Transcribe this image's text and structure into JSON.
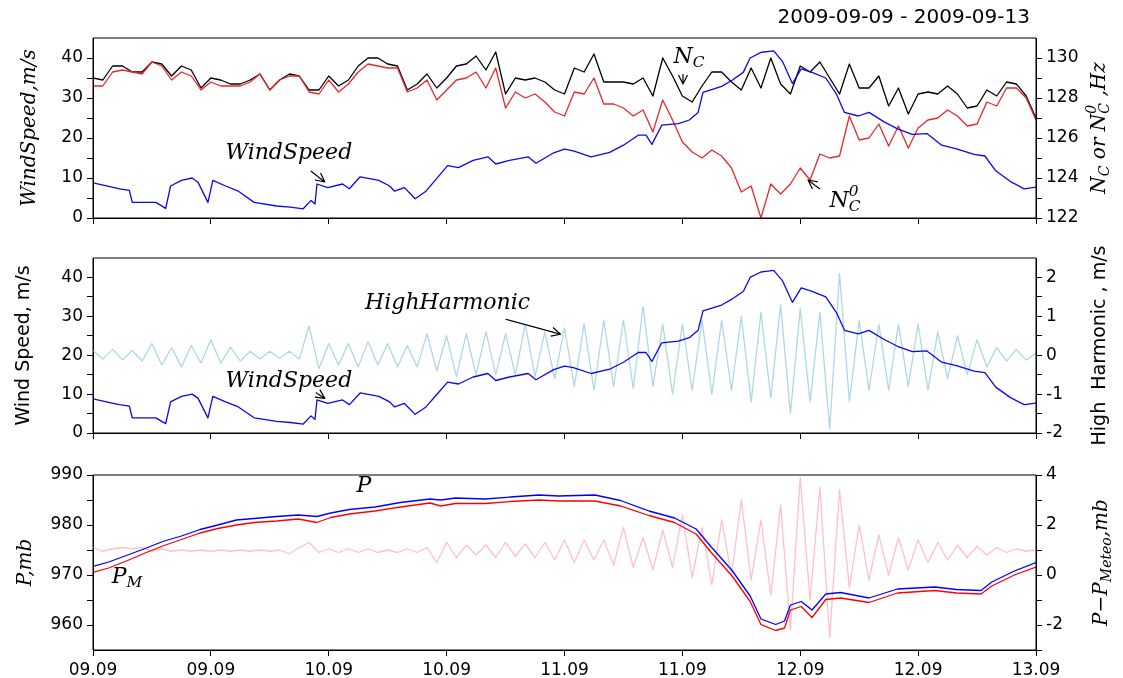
{
  "chart_data": [
    {
      "type": "line",
      "title": "2009-09-09 - 2009-09-13",
      "ylabel": "WindSpeed,m/s",
      "y2label": "N$_{C}$ or N$_{C}$$^{0}$ ,Hz",
      "tick_labels": "y",
      "x": [
        "2009-09-09T00:00",
        "2009-09-09T01:00",
        "2009-09-09T02:00",
        "2009-09-09T03:00",
        "2009-09-09T04:00",
        "2009-09-09T05:00",
        "2009-09-09T06:00",
        "2009-09-09T07:00",
        "2009-09-09T08:00",
        "2009-09-09T09:00",
        "2009-09-09T10:00",
        "2009-09-09T11:00",
        "2009-09-09T12:00",
        "2009-09-09T13:00",
        "2009-09-09T14:00",
        "2009-09-09T15:00",
        "2009-09-09T16:00",
        "2009-09-09T17:00",
        "2009-09-09T18:00",
        "2009-09-09T19:00",
        "2009-09-09T20:00",
        "2009-09-09T21:00",
        "2009-09-09T22:00",
        "2009-09-09T23:00",
        "2009-09-10T00:00",
        "2009-09-10T01:00",
        "2009-09-10T02:00",
        "2009-09-10T03:00",
        "2009-09-10T04:00",
        "2009-09-10T05:00",
        "2009-09-10T06:00",
        "2009-09-10T07:00",
        "2009-09-10T08:00",
        "2009-09-10T09:00",
        "2009-09-10T10:00",
        "2009-09-10T11:00",
        "2009-09-10T12:00",
        "2009-09-10T13:00",
        "2009-09-10T14:00",
        "2009-09-10T15:00",
        "2009-09-10T16:00",
        "2009-09-10T17:00",
        "2009-09-10T18:00",
        "2009-09-10T19:00",
        "2009-09-10T20:00",
        "2009-09-10T21:00",
        "2009-09-10T22:00",
        "2009-09-10T23:00",
        "2009-09-11T00:00",
        "2009-09-11T01:00",
        "2009-09-11T02:00",
        "2009-09-11T03:00",
        "2009-09-11T04:00",
        "2009-09-11T05:00",
        "2009-09-11T06:00",
        "2009-09-11T07:00",
        "2009-09-11T08:00",
        "2009-09-11T09:00",
        "2009-09-11T10:00",
        "2009-09-11T11:00",
        "2009-09-11T12:00",
        "2009-09-11T13:00",
        "2009-09-11T14:00",
        "2009-09-11T15:00",
        "2009-09-11T16:00",
        "2009-09-11T17:00",
        "2009-09-11T18:00",
        "2009-09-11T19:00",
        "2009-09-11T20:00",
        "2009-09-11T21:00",
        "2009-09-11T22:00",
        "2009-09-11T23:00",
        "2009-09-12T00:00",
        "2009-09-12T01:00",
        "2009-09-12T02:00",
        "2009-09-12T03:00",
        "2009-09-12T04:00",
        "2009-09-12T05:00",
        "2009-09-12T06:00",
        "2009-09-12T07:00",
        "2009-09-12T08:00",
        "2009-09-12T09:00",
        "2009-09-12T10:00",
        "2009-09-12T11:00",
        "2009-09-12T12:00",
        "2009-09-12T13:00",
        "2009-09-12T14:00",
        "2009-09-12T15:00",
        "2009-09-12T16:00",
        "2009-09-12T17:00",
        "2009-09-12T18:00",
        "2009-09-12T19:00",
        "2009-09-12T20:00",
        "2009-09-12T21:00",
        "2009-09-12T22:00",
        "2009-09-12T23:00",
        "2009-09-13T00:00"
      ],
      "xlim": [
        "2009-09-09T00:00",
        "2009-09-13T00:00"
      ],
      "xticks": [
        {
          "value": "2009-09-09T00:00",
          "label": null
        },
        {
          "value": "2009-09-09T12:00",
          "label": null
        },
        {
          "value": "2009-09-10T00:00",
          "label": null
        },
        {
          "value": "2009-09-10T12:00",
          "label": null
        },
        {
          "value": "2009-09-11T00:00",
          "label": null
        },
        {
          "value": "2009-09-11T12:00",
          "label": null
        },
        {
          "value": "2009-09-12T00:00",
          "label": null
        },
        {
          "value": "2009-09-12T12:00",
          "label": null
        },
        {
          "value": "2009-09-13T00:00",
          "label": null
        }
      ],
      "ylim": [
        0,
        45
      ],
      "yticks": [
        0,
        {
          "value": 5,
          "label": null
        },
        10,
        {
          "value": 15,
          "label": null
        },
        20,
        {
          "value": 25,
          "label": null
        },
        30,
        {
          "value": 35,
          "label": null
        },
        40
      ],
      "y2lim": [
        122,
        131
      ],
      "y2ticks": [
        122,
        {
          "value": 123,
          "label": null
        },
        124,
        {
          "value": 125,
          "label": null
        },
        126,
        {
          "value": 127,
          "label": null
        },
        128,
        {
          "value": 129,
          "label": null
        },
        130
      ],
      "series": [
        {
          "type": "line",
          "axis": "y2",
          "color": "#000000",
          "values": [
            129.0,
            128.9,
            129.6,
            129.6,
            129.3,
            129.3,
            129.8,
            129.7,
            129.1,
            129.6,
            129.4,
            128.5,
            129.0,
            128.9,
            128.7,
            128.7,
            128.9,
            129.2,
            128.4,
            128.9,
            129.2,
            129.1,
            128.4,
            128.4,
            129.1,
            128.6,
            128.9,
            129.6,
            130.0,
            130.0,
            129.7,
            129.6,
            128.4,
            128.7,
            129.2,
            128.5,
            129.0,
            129.6,
            129.7,
            130.1,
            129.4,
            130.3,
            128.2,
            129.0,
            128.9,
            129.0,
            128.8,
            128.4,
            128.2,
            129.5,
            129.3,
            130.2,
            128.8,
            128.8,
            128.8,
            128.7,
            129.0,
            128.1,
            130.0,
            129.1,
            128.1,
            127.8,
            128.6,
            129.3,
            129.3,
            128.8,
            128.4,
            129.5,
            128.5,
            130.0,
            128.7,
            128.2,
            129.6,
            129.3,
            129.8,
            129.0,
            128.2,
            129.7,
            128.5,
            128.5,
            129.1,
            127.6,
            128.5,
            127.2,
            128.2,
            128.3,
            128.2,
            128.6,
            128.2,
            127.5,
            127.6,
            128.4,
            128.1,
            128.8,
            128.7,
            128.1,
            127.0
          ]
        },
        {
          "type": "line",
          "axis": "y2",
          "color": "#e8282a",
          "values": [
            128.6,
            128.6,
            129.3,
            129.4,
            129.3,
            129.2,
            129.8,
            129.6,
            128.9,
            129.3,
            129.1,
            128.4,
            128.8,
            128.6,
            128.6,
            128.6,
            128.8,
            129.2,
            128.4,
            128.9,
            129.1,
            129.1,
            128.3,
            128.2,
            128.9,
            128.3,
            128.7,
            129.3,
            129.7,
            129.6,
            129.5,
            129.5,
            128.3,
            128.5,
            128.9,
            127.9,
            128.4,
            128.9,
            129.0,
            129.3,
            128.5,
            129.5,
            127.5,
            128.3,
            128.0,
            128.2,
            127.8,
            127.3,
            127.1,
            128.3,
            128.2,
            129.0,
            127.7,
            127.7,
            127.5,
            127.1,
            127.4,
            126.3,
            127.9,
            126.9,
            125.8,
            125.3,
            125.0,
            125.4,
            125.1,
            124.5,
            123.3,
            123.6,
            122.0,
            123.7,
            123.2,
            123.7,
            124.5,
            123.9,
            125.2,
            125.0,
            125.1,
            127.1,
            125.9,
            126.0,
            126.7,
            125.6,
            126.6,
            125.5,
            126.5,
            126.9,
            127.0,
            127.4,
            127.1,
            126.6,
            126.7,
            127.8,
            127.6,
            128.5,
            128.5,
            128.0,
            126.9
          ]
        },
        {
          "type": "line",
          "color": "#0a0ae6",
          "x": [
            "2009-09-09T00:00",
            "2009-09-09T01:36",
            "2009-09-09T02:42",
            "2009-09-09T03:42",
            "2009-09-09T04:00",
            "2009-09-09T05:18",
            "2009-09-09T06:24",
            "2009-09-09T07:24",
            "2009-09-09T07:54",
            "2009-09-09T09:00",
            "2009-09-09T10:06",
            "2009-09-09T10:42",
            "2009-09-09T11:42",
            "2009-09-09T12:12",
            "2009-09-09T13:30",
            "2009-09-09T14:48",
            "2009-09-09T16:24",
            "2009-09-09T18:42",
            "2009-09-09T20:06",
            "2009-09-09T21:24",
            "2009-09-09T22:12",
            "2009-09-09T22:36",
            "2009-09-09T22:48",
            "2009-09-09T23:54",
            "2009-09-10T01:24",
            "2009-09-10T02:06",
            "2009-09-10T03:12",
            "2009-09-10T05:06",
            "2009-09-10T06:12",
            "2009-09-10T06:42",
            "2009-09-10T07:42",
            "2009-09-10T08:48",
            "2009-09-10T09:54",
            "2009-09-10T11:00",
            "2009-09-10T12:06",
            "2009-09-10T13:12",
            "2009-09-10T14:42",
            "2009-09-10T16:12",
            "2009-09-10T17:00",
            "2009-09-10T18:24",
            "2009-09-10T20:18",
            "2009-09-10T21:06",
            "2009-09-10T22:54",
            "2009-09-11T00:00",
            "2009-09-11T00:54",
            "2009-09-11T02:42",
            "2009-09-11T04:36",
            "2009-09-11T06:00",
            "2009-09-11T07:30",
            "2009-09-11T08:18",
            "2009-09-11T08:54",
            "2009-09-11T09:54",
            "2009-09-11T11:36",
            "2009-09-11T12:42",
            "2009-09-11T13:36",
            "2009-09-11T14:06",
            "2009-09-11T16:00",
            "2009-09-11T17:06",
            "2009-09-11T18:12",
            "2009-09-11T18:54",
            "2009-09-11T20:00",
            "2009-09-11T21:18",
            "2009-09-11T22:12",
            "2009-09-11T23:12",
            "2009-09-12T00:06",
            "2009-09-12T01:12",
            "2009-09-12T02:36",
            "2009-09-12T03:42",
            "2009-09-12T04:30",
            "2009-09-12T05:54",
            "2009-09-12T07:00",
            "2009-09-12T08:30",
            "2009-09-12T09:54",
            "2009-09-12T11:24",
            "2009-09-12T12:54",
            "2009-09-12T14:24",
            "2009-09-12T15:54",
            "2009-09-12T17:42",
            "2009-09-12T18:48",
            "2009-09-12T19:54",
            "2009-09-12T21:24",
            "2009-09-12T22:48",
            "2009-09-13T00:00"
          ],
          "values": [
            8.8,
            7.9,
            7.3,
            6.9,
            3.9,
            3.9,
            3.9,
            2.4,
            8.0,
            9.4,
            10.0,
            8.9,
            3.9,
            9.4,
            8.0,
            6.7,
            3.9,
            3.0,
            2.7,
            2.3,
            4.4,
            3.5,
            8.5,
            7.6,
            8.5,
            7.3,
            10.3,
            9.4,
            8.0,
            6.7,
            7.6,
            4.8,
            6.7,
            9.9,
            13.1,
            12.6,
            14.4,
            15.3,
            13.5,
            14.4,
            15.3,
            13.7,
            16.3,
            17.2,
            16.8,
            15.3,
            16.4,
            18.2,
            20.7,
            20.7,
            18.4,
            23.2,
            23.6,
            24.5,
            26.4,
            31.4,
            32.9,
            34.5,
            36.4,
            40.0,
            41.4,
            41.8,
            39.1,
            33.6,
            37.3,
            36.4,
            35.0,
            30.9,
            26.4,
            25.5,
            26.4,
            24.1,
            22.3,
            20.9,
            21.1,
            18.2,
            17.3,
            15.9,
            15.5,
            11.8,
            9.1,
            7.3,
            7.7
          ]
        }
      ],
      "annotations": [
        {
          "text": "WindSpeed",
          "x": "2009-09-09T23:36",
          "y": 9.0
        },
        "N$_{C}$",
        "N$_{C}$$^{0}$"
      ]
    },
    {
      "type": "line",
      "ylabel": "Wind Speed, m/s",
      "y2label": "High  Harmonic , m/s",
      "tick_labels": "y",
      "x": [
        "2009-09-09T00:00",
        "2009-09-09T01:00",
        "2009-09-09T02:00",
        "2009-09-09T03:00",
        "2009-09-09T04:00",
        "2009-09-09T05:00",
        "2009-09-09T06:00",
        "2009-09-09T07:00",
        "2009-09-09T08:00",
        "2009-09-09T09:00",
        "2009-09-09T10:00",
        "2009-09-09T11:00",
        "2009-09-09T12:00",
        "2009-09-09T13:00",
        "2009-09-09T14:00",
        "2009-09-09T15:00",
        "2009-09-09T16:00",
        "2009-09-09T17:00",
        "2009-09-09T18:00",
        "2009-09-09T19:00",
        "2009-09-09T20:00",
        "2009-09-09T21:00",
        "2009-09-09T22:00",
        "2009-09-09T23:00",
        "2009-09-10T00:00",
        "2009-09-10T01:00",
        "2009-09-10T02:00",
        "2009-09-10T03:00",
        "2009-09-10T04:00",
        "2009-09-10T05:00",
        "2009-09-10T06:00",
        "2009-09-10T07:00",
        "2009-09-10T08:00",
        "2009-09-10T09:00",
        "2009-09-10T10:00",
        "2009-09-10T11:00",
        "2009-09-10T12:00",
        "2009-09-10T13:00",
        "2009-09-10T14:00",
        "2009-09-10T15:00",
        "2009-09-10T16:00",
        "2009-09-10T17:00",
        "2009-09-10T18:00",
        "2009-09-10T19:00",
        "2009-09-10T20:00",
        "2009-09-10T21:00",
        "2009-09-10T22:00",
        "2009-09-10T23:00",
        "2009-09-11T00:00",
        "2009-09-11T01:00",
        "2009-09-11T02:00",
        "2009-09-11T03:00",
        "2009-09-11T04:00",
        "2009-09-11T05:00",
        "2009-09-11T06:00",
        "2009-09-11T07:00",
        "2009-09-11T08:00",
        "2009-09-11T09:00",
        "2009-09-11T10:00",
        "2009-09-11T11:00",
        "2009-09-11T12:00",
        "2009-09-11T13:00",
        "2009-09-11T14:00",
        "2009-09-11T15:00",
        "2009-09-11T16:00",
        "2009-09-11T17:00",
        "2009-09-11T18:00",
        "2009-09-11T19:00",
        "2009-09-11T20:00",
        "2009-09-11T21:00",
        "2009-09-11T22:00",
        "2009-09-11T23:00",
        "2009-09-12T00:00",
        "2009-09-12T01:00",
        "2009-09-12T02:00",
        "2009-09-12T03:00",
        "2009-09-12T04:00",
        "2009-09-12T05:00",
        "2009-09-12T06:00",
        "2009-09-12T07:00",
        "2009-09-12T08:00",
        "2009-09-12T09:00",
        "2009-09-12T10:00",
        "2009-09-12T11:00",
        "2009-09-12T12:00",
        "2009-09-12T13:00",
        "2009-09-12T14:00",
        "2009-09-12T15:00",
        "2009-09-12T16:00",
        "2009-09-12T17:00",
        "2009-09-12T18:00",
        "2009-09-12T19:00",
        "2009-09-12T20:00",
        "2009-09-12T21:00",
        "2009-09-12T22:00",
        "2009-09-12T23:00",
        "2009-09-13T00:00"
      ],
      "xlim": [
        "2009-09-09T00:00",
        "2009-09-13T00:00"
      ],
      "xticks": [
        {
          "value": "2009-09-09T00:00",
          "label": null
        },
        {
          "value": "2009-09-09T12:00",
          "label": null
        },
        {
          "value": "2009-09-10T00:00",
          "label": null
        },
        {
          "value": "2009-09-10T12:00",
          "label": null
        },
        {
          "value": "2009-09-11T00:00",
          "label": null
        },
        {
          "value": "2009-09-11T12:00",
          "label": null
        },
        {
          "value": "2009-09-12T00:00",
          "label": null
        },
        {
          "value": "2009-09-12T12:00",
          "label": null
        },
        {
          "value": "2009-09-13T00:00",
          "label": null
        }
      ],
      "ylim": [
        0,
        45
      ],
      "yticks": [
        0,
        {
          "value": 5,
          "label": null
        },
        10,
        {
          "value": 15,
          "label": null
        },
        20,
        {
          "value": 25,
          "label": null
        },
        30,
        {
          "value": 35,
          "label": null
        },
        40
      ],
      "y2lim": [
        -2,
        2.5
      ],
      "y2ticks": [
        -2,
        {
          "value": -1.5,
          "label": null
        },
        -1,
        {
          "value": -0.5,
          "label": null
        },
        0,
        {
          "value": 0.5,
          "label": null
        },
        1,
        {
          "value": 1.5,
          "label": null
        },
        2
      ],
      "series": [
        {
          "type": "line",
          "axis": "y2",
          "color": "#add8e6",
          "values": [
            0.12,
            -0.1,
            0.15,
            -0.12,
            0.12,
            -0.15,
            0.3,
            -0.25,
            0.2,
            -0.3,
            0.25,
            -0.2,
            0.4,
            -0.2,
            0.2,
            -0.15,
            0.1,
            -0.1,
            0.1,
            -0.08,
            0.1,
            -0.1,
            0.75,
            -0.35,
            0.3,
            -0.25,
            0.3,
            -0.3,
            0.35,
            -0.25,
            0.3,
            -0.3,
            0.25,
            -0.3,
            0.55,
            -0.4,
            0.5,
            -0.55,
            0.55,
            -0.5,
            0.6,
            -0.5,
            0.55,
            -0.5,
            0.8,
            -0.55,
            0.6,
            -0.6,
            0.7,
            -0.8,
            0.8,
            -0.9,
            0.9,
            -0.8,
            0.9,
            -0.85,
            1.25,
            -0.8,
            0.8,
            -1.0,
            0.8,
            -0.9,
            0.9,
            -1.0,
            0.9,
            -0.9,
            1.0,
            -1.2,
            1.1,
            -1.1,
            1.3,
            -1.5,
            1.2,
            -1.2,
            1.1,
            -1.9,
            2.1,
            -1.2,
            0.9,
            -0.9,
            0.8,
            -0.9,
            0.8,
            -0.8,
            0.8,
            -0.9,
            0.6,
            -0.6,
            0.5,
            -0.5,
            0.4,
            -0.3,
            0.2,
            -0.15,
            0.15,
            -0.12,
            0.05
          ]
        },
        {
          "type": "line",
          "color": "#0a0ae6",
          "x": [
            "2009-09-09T00:00",
            "2009-09-09T01:36",
            "2009-09-09T02:42",
            "2009-09-09T03:42",
            "2009-09-09T04:00",
            "2009-09-09T05:18",
            "2009-09-09T06:24",
            "2009-09-09T07:24",
            "2009-09-09T07:54",
            "2009-09-09T09:00",
            "2009-09-09T10:06",
            "2009-09-09T10:42",
            "2009-09-09T11:42",
            "2009-09-09T12:12",
            "2009-09-09T13:30",
            "2009-09-09T14:48",
            "2009-09-09T16:24",
            "2009-09-09T18:42",
            "2009-09-09T20:06",
            "2009-09-09T21:24",
            "2009-09-09T22:12",
            "2009-09-09T22:36",
            "2009-09-09T22:48",
            "2009-09-09T23:54",
            "2009-09-10T01:24",
            "2009-09-10T02:06",
            "2009-09-10T03:12",
            "2009-09-10T05:06",
            "2009-09-10T06:12",
            "2009-09-10T06:42",
            "2009-09-10T07:42",
            "2009-09-10T08:48",
            "2009-09-10T09:54",
            "2009-09-10T11:00",
            "2009-09-10T12:06",
            "2009-09-10T13:12",
            "2009-09-10T14:42",
            "2009-09-10T16:12",
            "2009-09-10T17:00",
            "2009-09-10T18:24",
            "2009-09-10T20:18",
            "2009-09-10T21:06",
            "2009-09-10T22:54",
            "2009-09-11T00:00",
            "2009-09-11T00:54",
            "2009-09-11T02:42",
            "2009-09-11T04:36",
            "2009-09-11T06:00",
            "2009-09-11T07:30",
            "2009-09-11T08:18",
            "2009-09-11T08:54",
            "2009-09-11T09:54",
            "2009-09-11T11:36",
            "2009-09-11T12:42",
            "2009-09-11T13:36",
            "2009-09-11T14:06",
            "2009-09-11T16:00",
            "2009-09-11T17:06",
            "2009-09-11T18:12",
            "2009-09-11T18:54",
            "2009-09-11T20:00",
            "2009-09-11T21:18",
            "2009-09-11T22:12",
            "2009-09-11T23:12",
            "2009-09-12T00:06",
            "2009-09-12T01:12",
            "2009-09-12T02:36",
            "2009-09-12T03:42",
            "2009-09-12T04:30",
            "2009-09-12T05:54",
            "2009-09-12T07:00",
            "2009-09-12T08:30",
            "2009-09-12T09:54",
            "2009-09-12T11:24",
            "2009-09-12T12:54",
            "2009-09-12T14:24",
            "2009-09-12T15:54",
            "2009-09-12T17:42",
            "2009-09-12T18:48",
            "2009-09-12T19:54",
            "2009-09-12T21:24",
            "2009-09-12T22:48",
            "2009-09-13T00:00"
          ],
          "values": [
            8.8,
            7.9,
            7.3,
            6.9,
            3.9,
            3.9,
            3.9,
            2.4,
            8.0,
            9.4,
            10.0,
            8.9,
            3.9,
            9.4,
            8.0,
            6.7,
            3.9,
            3.0,
            2.7,
            2.3,
            4.4,
            3.5,
            8.5,
            7.6,
            8.5,
            7.3,
            10.3,
            9.4,
            8.0,
            6.7,
            7.6,
            4.8,
            6.7,
            9.9,
            13.1,
            12.6,
            14.4,
            15.3,
            13.5,
            14.4,
            15.3,
            13.7,
            16.3,
            17.2,
            16.8,
            15.3,
            16.4,
            18.2,
            20.7,
            20.7,
            18.4,
            23.2,
            23.6,
            24.5,
            26.4,
            31.4,
            32.9,
            34.5,
            36.4,
            40.0,
            41.4,
            41.8,
            39.1,
            33.6,
            37.3,
            36.4,
            35.0,
            30.9,
            26.4,
            25.5,
            26.4,
            24.1,
            22.3,
            20.9,
            21.1,
            18.2,
            17.3,
            15.9,
            15.5,
            11.8,
            9.1,
            7.3,
            7.7
          ]
        }
      ],
      "annotations": [
        {
          "text": "HighHarmonic",
          "x": "2009-09-10T23:36",
          "y": 25.4
        },
        {
          "text": "WindSpeed",
          "x": "2009-09-09T23:36",
          "y": 8.9
        }
      ]
    },
    {
      "type": "line",
      "ylabel": "P,mb",
      "y2label": "P−P$_{Meteo}$,mb",
      "x": [
        "2009-09-09T00:00",
        "2009-09-09T01:00",
        "2009-09-09T02:00",
        "2009-09-09T03:00",
        "2009-09-09T04:00",
        "2009-09-09T05:00",
        "2009-09-09T06:00",
        "2009-09-09T07:00",
        "2009-09-09T08:00",
        "2009-09-09T09:00",
        "2009-09-09T10:00",
        "2009-09-09T11:00",
        "2009-09-09T12:00",
        "2009-09-09T13:00",
        "2009-09-09T14:00",
        "2009-09-09T15:00",
        "2009-09-09T16:00",
        "2009-09-09T17:00",
        "2009-09-09T18:00",
        "2009-09-09T19:00",
        "2009-09-09T20:00",
        "2009-09-09T21:00",
        "2009-09-09T22:00",
        "2009-09-09T23:00",
        "2009-09-10T00:00",
        "2009-09-10T01:00",
        "2009-09-10T02:00",
        "2009-09-10T03:00",
        "2009-09-10T04:00",
        "2009-09-10T05:00",
        "2009-09-10T06:00",
        "2009-09-10T07:00",
        "2009-09-10T08:00",
        "2009-09-10T09:00",
        "2009-09-10T10:00",
        "2009-09-10T11:00",
        "2009-09-10T12:00",
        "2009-09-10T13:00",
        "2009-09-10T14:00",
        "2009-09-10T15:00",
        "2009-09-10T16:00",
        "2009-09-10T17:00",
        "2009-09-10T18:00",
        "2009-09-10T19:00",
        "2009-09-10T20:00",
        "2009-09-10T21:00",
        "2009-09-10T22:00",
        "2009-09-10T23:00",
        "2009-09-11T00:00",
        "2009-09-11T01:00",
        "2009-09-11T02:00",
        "2009-09-11T03:00",
        "2009-09-11T04:00",
        "2009-09-11T05:00",
        "2009-09-11T06:00",
        "2009-09-11T07:00",
        "2009-09-11T08:00",
        "2009-09-11T09:00",
        "2009-09-11T10:00",
        "2009-09-11T11:00",
        "2009-09-11T12:00",
        "2009-09-11T13:00",
        "2009-09-11T14:00",
        "2009-09-11T15:00",
        "2009-09-11T16:00",
        "2009-09-11T17:00",
        "2009-09-11T18:00",
        "2009-09-11T19:00",
        "2009-09-11T20:00",
        "2009-09-11T21:00",
        "2009-09-11T22:00",
        "2009-09-11T23:00",
        "2009-09-12T00:00",
        "2009-09-12T01:00",
        "2009-09-12T02:00",
        "2009-09-12T03:00",
        "2009-09-12T04:00",
        "2009-09-12T05:00",
        "2009-09-12T06:00",
        "2009-09-12T07:00",
        "2009-09-12T08:00",
        "2009-09-12T09:00",
        "2009-09-12T10:00",
        "2009-09-12T11:00",
        "2009-09-12T12:00",
        "2009-09-12T13:00",
        "2009-09-12T14:00",
        "2009-09-12T15:00",
        "2009-09-12T16:00",
        "2009-09-12T17:00",
        "2009-09-12T18:00",
        "2009-09-12T19:00",
        "2009-09-12T20:00",
        "2009-09-12T21:00",
        "2009-09-12T22:00",
        "2009-09-12T23:00",
        "2009-09-13T00:00"
      ],
      "xlim": [
        "2009-09-09T00:00",
        "2009-09-13T00:00"
      ],
      "xticks": [
        {
          "value": "2009-09-09T00:00",
          "label": "09.09"
        },
        {
          "value": "2009-09-09T12:00",
          "label": "09.09"
        },
        {
          "value": "2009-09-10T00:00",
          "label": "10.09"
        },
        {
          "value": "2009-09-10T12:00",
          "label": "10.09"
        },
        {
          "value": "2009-09-11T00:00",
          "label": "11.09"
        },
        {
          "value": "2009-09-11T12:00",
          "label": "11.09"
        },
        {
          "value": "2009-09-12T00:00",
          "label": "12.09"
        },
        {
          "value": "2009-09-12T12:00",
          "label": "12.09"
        },
        {
          "value": "2009-09-13T00:00",
          "label": "13.09"
        }
      ],
      "ylim": [
        955,
        990
      ],
      "yticks": [
        960,
        {
          "value": 965,
          "label": null
        },
        970,
        {
          "value": 975,
          "label": null
        },
        980,
        {
          "value": 985,
          "label": null
        },
        990
      ],
      "y2lim": [
        -3,
        4
      ],
      "y2ticks": [
        {
          "value": -3,
          "label": null
        },
        -2,
        {
          "value": -1,
          "label": null
        },
        0,
        {
          "value": 1,
          "label": null
        },
        2,
        {
          "value": 3,
          "label": null
        },
        4
      ],
      "series": [
        {
          "type": "line",
          "axis": "y2",
          "color": "#ffc0cb",
          "values": [
            1.1,
            0.95,
            1.05,
            1.1,
            1.05,
            1.1,
            0.95,
            1.05,
            0.95,
            1.0,
            0.95,
            1.0,
            0.95,
            1.0,
            0.95,
            1.0,
            0.95,
            1.0,
            0.95,
            1.0,
            0.85,
            1.1,
            1.3,
            0.9,
            1.05,
            0.9,
            1.05,
            0.9,
            1.05,
            0.9,
            1.0,
            0.9,
            1.05,
            0.9,
            1.1,
            0.5,
            1.3,
            0.7,
            1.2,
            0.8,
            1.2,
            0.7,
            1.3,
            0.75,
            1.25,
            0.7,
            1.3,
            0.6,
            1.4,
            0.5,
            1.4,
            0.6,
            1.4,
            0.4,
            1.9,
            0.3,
            1.5,
            0.2,
            1.8,
            0.3,
            2.4,
            -0.1,
            1.9,
            -0.4,
            2.2,
            0.0,
            3.0,
            -0.2,
            2.2,
            -0.8,
            2.8,
            -2.2,
            3.9,
            -1.0,
            3.5,
            -2.5,
            3.4,
            -0.5,
            2.0,
            -0.2,
            1.6,
            0.0,
            1.5,
            0.2,
            1.4,
            0.5,
            1.3,
            0.6,
            1.2,
            0.7,
            1.15,
            0.8,
            1.1,
            0.9,
            1.05,
            0.95,
            1.0
          ]
        },
        {
          "type": "line",
          "color": "#0000ff",
          "x": [
            "2009-09-09T00:00",
            "2009-09-09T01:36",
            "2009-09-09T03:24",
            "2009-09-09T05:18",
            "2009-09-09T07:06",
            "2009-09-09T09:00",
            "2009-09-09T10:54",
            "2009-09-09T12:42",
            "2009-09-09T14:36",
            "2009-09-09T16:24",
            "2009-09-09T18:42",
            "2009-09-09T20:54",
            "2009-09-09T22:48",
            "2009-09-10T00:12",
            "2009-09-10T02:06",
            "2009-09-10T04:42",
            "2009-09-10T07:18",
            "2009-09-10T10:18",
            "2009-09-10T11:24",
            "2009-09-10T12:54",
            "2009-09-10T15:54",
            "2009-09-10T18:30",
            "2009-09-10T21:24",
            "2009-09-10T23:24",
            "2009-09-11T03:06",
            "2009-09-11T05:42",
            "2009-09-11T08:36",
            "2009-09-11T11:12",
            "2009-09-11T13:24",
            "2009-09-11T14:54",
            "2009-09-11T17:06",
            "2009-09-11T18:54",
            "2009-09-11T20:00",
            "2009-09-11T21:30",
            "2009-09-11T22:24",
            "2009-09-11T23:00",
            "2009-09-12T00:06",
            "2009-09-12T01:12",
            "2009-09-12T02:36",
            "2009-09-12T04:06",
            "2009-09-12T07:00",
            "2009-09-12T09:54",
            "2009-09-12T13:42",
            "2009-09-12T15:54",
            "2009-09-12T18:24",
            "2009-09-12T19:30",
            "2009-09-12T21:48",
            "2009-09-13T00:00"
          ],
          "values": [
            971.7,
            972.6,
            973.9,
            975.3,
            976.7,
            977.8,
            979.1,
            980.0,
            981.0,
            981.3,
            981.7,
            982.0,
            981.7,
            982.4,
            983.1,
            983.6,
            984.5,
            985.2,
            985.0,
            985.4,
            985.2,
            985.6,
            986.0,
            985.8,
            986.0,
            984.9,
            982.8,
            981.4,
            979.2,
            975.7,
            970.8,
            965.8,
            961.2,
            960.1,
            960.8,
            964.0,
            964.7,
            963.0,
            966.2,
            966.5,
            965.4,
            967.2,
            967.6,
            967.1,
            966.9,
            968.6,
            970.8,
            972.5
          ]
        },
        {
          "type": "line",
          "color": "#ff0000",
          "x": [
            "2009-09-09T00:00",
            "2009-09-09T01:36",
            "2009-09-09T03:24",
            "2009-09-09T05:18",
            "2009-09-09T07:06",
            "2009-09-09T09:00",
            "2009-09-09T10:54",
            "2009-09-09T12:42",
            "2009-09-09T14:36",
            "2009-09-09T16:24",
            "2009-09-09T18:42",
            "2009-09-09T20:54",
            "2009-09-09T22:48",
            "2009-09-10T00:12",
            "2009-09-10T02:06",
            "2009-09-10T04:42",
            "2009-09-10T07:18",
            "2009-09-10T10:18",
            "2009-09-10T11:24",
            "2009-09-10T12:54",
            "2009-09-10T15:54",
            "2009-09-10T18:30",
            "2009-09-10T21:24",
            "2009-09-10T23:24",
            "2009-09-11T03:06",
            "2009-09-11T05:42",
            "2009-09-11T08:36",
            "2009-09-11T11:12",
            "2009-09-11T13:24",
            "2009-09-11T14:54",
            "2009-09-11T17:06",
            "2009-09-11T18:54",
            "2009-09-11T20:00",
            "2009-09-11T21:30",
            "2009-09-11T22:24",
            "2009-09-11T23:00",
            "2009-09-12T00:06",
            "2009-09-12T01:12",
            "2009-09-12T02:36",
            "2009-09-12T04:06",
            "2009-09-12T07:00",
            "2009-09-12T09:54",
            "2009-09-12T13:42",
            "2009-09-12T15:54",
            "2009-09-12T18:24",
            "2009-09-12T19:30",
            "2009-09-12T21:48",
            "2009-09-13T00:00"
          ],
          "values": [
            970.5,
            971.4,
            972.8,
            974.4,
            975.8,
            977.1,
            978.4,
            979.3,
            980.0,
            980.5,
            980.8,
            981.2,
            980.5,
            981.5,
            982.2,
            982.8,
            983.6,
            984.4,
            983.8,
            984.3,
            984.3,
            984.7,
            985.0,
            984.8,
            984.8,
            983.8,
            981.9,
            980.5,
            978.2,
            974.6,
            969.7,
            964.7,
            960.1,
            958.9,
            959.4,
            963.0,
            963.7,
            961.5,
            965.1,
            965.4,
            964.5,
            966.4,
            966.9,
            966.4,
            966.2,
            967.8,
            970.0,
            971.6
          ]
        }
      ],
      "annotations": [
        "P",
        "P$_{M}$"
      ]
    }
  ]
}
